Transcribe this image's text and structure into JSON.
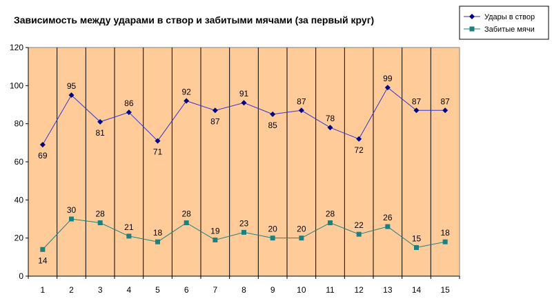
{
  "chart_data": {
    "type": "line",
    "title": "Зависимость между ударами в створ и забитыми мячами (за первый круг)",
    "categories": [
      "1",
      "2",
      "3",
      "4",
      "5",
      "6",
      "7",
      "8",
      "9",
      "10",
      "11",
      "12",
      "13",
      "14",
      "15"
    ],
    "ylim": [
      0,
      120
    ],
    "yticks": [
      0,
      20,
      40,
      60,
      80,
      100,
      120
    ],
    "grid": "vertical",
    "legend_position": "top-right",
    "plot_background": "#FFCC99",
    "series": [
      {
        "name": "Удары в створ",
        "color": "#000080",
        "marker": "diamond",
        "line_color": "#3333CC",
        "values": [
          69,
          95,
          81,
          86,
          71,
          92,
          87,
          91,
          85,
          87,
          78,
          72,
          99,
          87,
          87
        ],
        "label_pos": [
          "below",
          "above",
          "below",
          "above",
          "below",
          "above",
          "below",
          "above",
          "below",
          "above",
          "above",
          "below",
          "above",
          "above",
          "above"
        ]
      },
      {
        "name": "Забитые мячи",
        "color": "#1E7F7F",
        "marker": "square",
        "line_color": "#1E7F7F",
        "values": [
          14,
          30,
          28,
          21,
          18,
          28,
          19,
          23,
          20,
          20,
          28,
          22,
          26,
          15,
          18
        ],
        "label_pos": [
          "below",
          "above",
          "above",
          "above",
          "above",
          "above",
          "above",
          "above",
          "above",
          "above",
          "above",
          "above",
          "above",
          "above",
          "above"
        ]
      }
    ]
  }
}
